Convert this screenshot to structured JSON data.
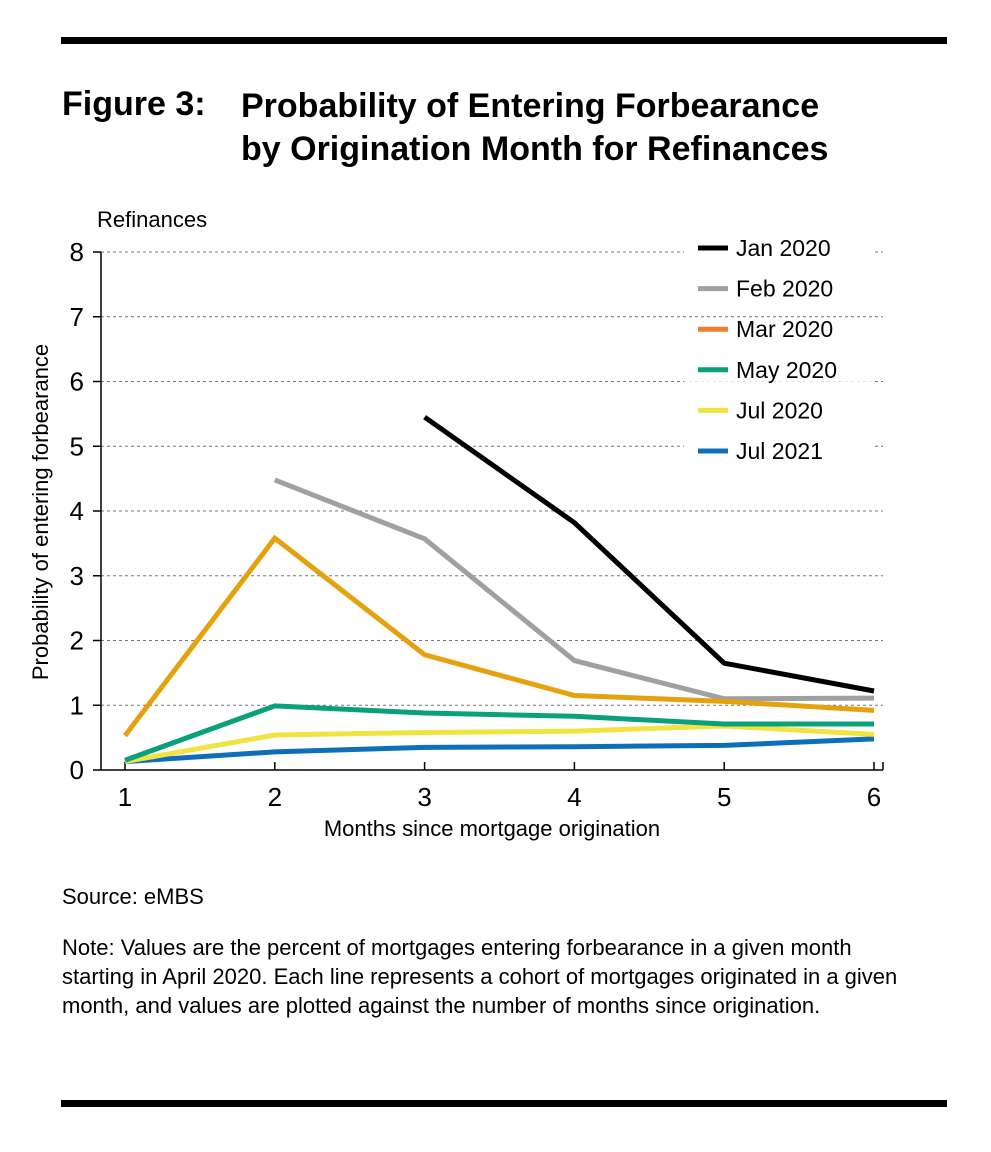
{
  "figure": {
    "label": "Figure 3:",
    "title_line1": "Probability of Entering Forbearance",
    "title_line2": "by Origination Month for Refinances"
  },
  "footer": {
    "source": "Source: eMBS",
    "note": "Note: Values are the percent of mortgages entering forbearance in a given month starting in April 2020. Each line represents a cohort of mortgages originated in a given month, and values are plotted against the number of months since origination."
  },
  "chart_data": {
    "type": "line",
    "subtitle": "Refinances",
    "xlabel": "Months since mortgage origination",
    "ylabel": "Probability of entering forbearance",
    "x": [
      1,
      2,
      3,
      4,
      5,
      6
    ],
    "xlim": [
      1,
      6
    ],
    "ylim": [
      0,
      8
    ],
    "yticks": [
      0,
      1,
      2,
      3,
      4,
      5,
      6,
      7,
      8
    ],
    "grid": "horizontal dotted",
    "legend_position": "top-right",
    "series": [
      {
        "name": "Jan 2020",
        "color": "#000000",
        "x": [
          3,
          4,
          5,
          6
        ],
        "values": [
          5.45,
          3.82,
          1.65,
          1.22
        ]
      },
      {
        "name": "Feb 2020",
        "color": "#a0a0a0",
        "x": [
          2,
          3,
          4,
          5,
          6
        ],
        "values": [
          4.48,
          3.57,
          1.69,
          1.1,
          1.11
        ]
      },
      {
        "name": "Mar 2020",
        "color": "#e6a10e",
        "legend_color": "#ee7f2d",
        "x": [
          1,
          2,
          3,
          4,
          5,
          6
        ],
        "values": [
          0.53,
          3.58,
          1.78,
          1.15,
          1.06,
          0.92
        ]
      },
      {
        "name": "May 2020",
        "color": "#0aa079",
        "x": [
          1,
          2,
          3,
          4,
          5,
          6
        ],
        "values": [
          0.15,
          0.99,
          0.88,
          0.83,
          0.71,
          0.71
        ]
      },
      {
        "name": "Jul 2020",
        "color": "#f0e442",
        "x": [
          1,
          2,
          3,
          4,
          5,
          6
        ],
        "values": [
          0.13,
          0.54,
          0.58,
          0.6,
          0.68,
          0.55
        ]
      },
      {
        "name": "Jul 2021",
        "color": "#0e6eb8",
        "x": [
          1,
          2,
          3,
          4,
          5,
          6
        ],
        "values": [
          0.13,
          0.28,
          0.35,
          0.36,
          0.38,
          0.48
        ]
      }
    ]
  }
}
